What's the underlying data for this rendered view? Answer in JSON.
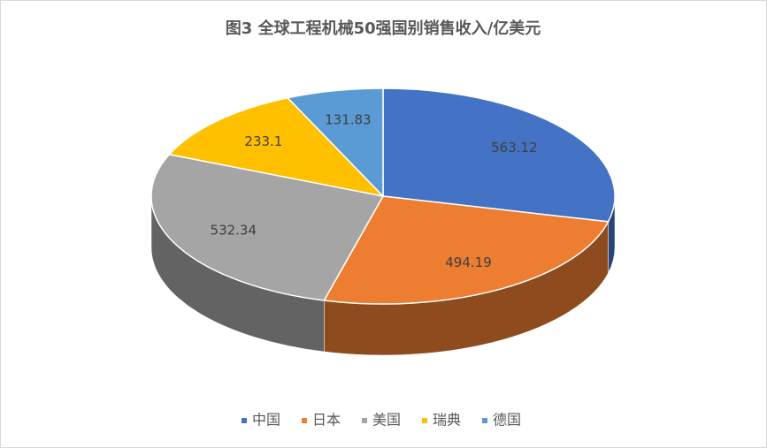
{
  "chart_data": {
    "type": "pie3d",
    "title": "图3  全球工程机械50强国别销售收入/亿美元",
    "categories": [
      "中国",
      "日本",
      "美国",
      "瑞典",
      "德国"
    ],
    "values": [
      563.12,
      494.19,
      532.34,
      233.1,
      131.83
    ],
    "colors": [
      "#4472c4",
      "#ed7d31",
      "#a5a5a5",
      "#ffc000",
      "#5b9bd5"
    ],
    "legend": "bottom"
  }
}
